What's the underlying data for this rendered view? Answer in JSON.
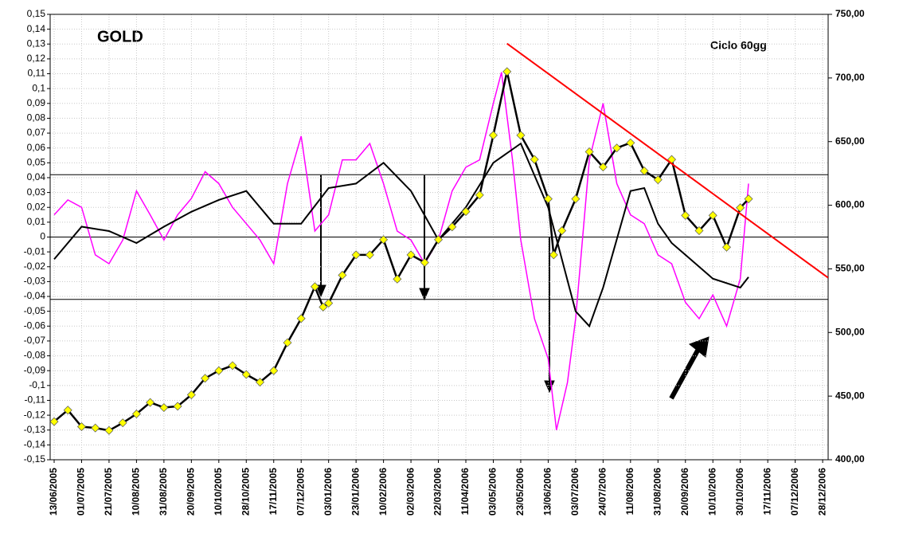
{
  "chart_data": {
    "type": "line",
    "title": "GOLD",
    "subtitle": "Ciclo 60gg",
    "categories": [
      "13/06/2005",
      "01/07/2005",
      "21/07/2005",
      "10/08/2005",
      "31/08/2005",
      "20/09/2005",
      "10/10/2005",
      "28/10/2005",
      "17/11/2005",
      "07/12/2005",
      "03/01/2006",
      "23/01/2006",
      "10/02/2006",
      "02/03/2006",
      "22/03/2006",
      "11/04/2006",
      "03/05/2006",
      "23/05/2006",
      "13/06/2006",
      "03/07/2006",
      "24/07/2006",
      "11/08/2006",
      "31/08/2006",
      "20/09/2006",
      "10/10/2006",
      "30/10/2006",
      "17/11/2006",
      "07/12/2006",
      "28/12/2006"
    ],
    "xlim": [
      -0.145,
      28.2
    ],
    "ylim": [
      -0.15,
      0.15
    ],
    "yticks": [
      {
        "value": 0.15,
        "label": "0,15"
      },
      {
        "value": 0.14,
        "label": "0,14"
      },
      {
        "value": 0.13,
        "label": "0,13"
      },
      {
        "value": 0.12,
        "label": "0,12"
      },
      {
        "value": 0.11,
        "label": "0,11"
      },
      {
        "value": 0.1,
        "label": "0,1"
      },
      {
        "value": 0.09,
        "label": "0,09"
      },
      {
        "value": 0.08,
        "label": "0,08"
      },
      {
        "value": 0.07,
        "label": "0,07"
      },
      {
        "value": 0.06,
        "label": "0,06"
      },
      {
        "value": 0.05,
        "label": "0,05"
      },
      {
        "value": 0.04,
        "label": "0,04"
      },
      {
        "value": 0.03,
        "label": "0,03"
      },
      {
        "value": 0.02,
        "label": "0,02"
      },
      {
        "value": 0.01,
        "label": "0,01"
      },
      0,
      {
        "value": -0.01,
        "label": "-0,01"
      },
      {
        "value": -0.02,
        "label": "-0,02"
      },
      {
        "value": -0.03,
        "label": "-0,03"
      },
      {
        "value": -0.04,
        "label": "-0,04"
      },
      {
        "value": -0.05,
        "label": "-0,05"
      },
      {
        "value": -0.06,
        "label": "-0,06"
      },
      {
        "value": -0.07,
        "label": "-0,07"
      },
      {
        "value": -0.08,
        "label": "-0,08"
      },
      {
        "value": -0.09,
        "label": "-0,09"
      },
      {
        "value": -0.1,
        "label": "-0,1"
      },
      {
        "value": -0.11,
        "label": "-0,11"
      },
      {
        "value": -0.12,
        "label": "-0,12"
      },
      {
        "value": -0.13,
        "label": "-0,13"
      },
      {
        "value": -0.14,
        "label": "-0,14"
      },
      {
        "value": -0.15,
        "label": "-0,15"
      }
    ],
    "y2lim": [
      400,
      750
    ],
    "y2ticks": [
      {
        "value": 400,
        "label": "400,00"
      },
      {
        "value": 450,
        "label": "450,00"
      },
      {
        "value": 500,
        "label": "500,00"
      },
      {
        "value": 550,
        "label": "550,00"
      },
      {
        "value": 600,
        "label": "600,00"
      },
      {
        "value": 650,
        "label": "650,00"
      },
      {
        "value": 700,
        "label": "700,00"
      },
      {
        "value": 750,
        "label": "750,00"
      }
    ],
    "grid": true,
    "reference_lines": [
      0.042,
      0,
      -0.042
    ],
    "series": [
      {
        "color": "#ff00ff",
        "width": 1.5,
        "x": [
          0,
          0.5,
          1,
          1.5,
          2,
          2.5,
          3,
          3.5,
          4,
          4.5,
          5,
          5.5,
          6,
          6.5,
          7,
          7.5,
          8,
          8.5,
          9,
          9.5,
          10,
          10.5,
          11,
          11.5,
          12,
          12.5,
          13,
          13.5,
          14,
          14.5,
          15,
          15.5,
          16,
          16.3,
          16.7,
          17,
          17.5,
          18,
          18.3,
          18.7,
          19,
          19.5,
          20,
          20.5,
          21,
          21.5,
          22,
          22.5,
          23,
          23.5,
          24,
          24.5,
          25,
          25.3
        ],
        "values": [
          0.015,
          0.025,
          0.02,
          -0.012,
          -0.018,
          -0.002,
          0.031,
          0.015,
          -0.002,
          0.015,
          0.026,
          0.044,
          0.036,
          0.02,
          0.009,
          -0.002,
          -0.018,
          0.036,
          0.068,
          0.004,
          0.015,
          0.052,
          0.052,
          0.063,
          0.036,
          0.004,
          -0.002,
          -0.018,
          -0.002,
          0.031,
          0.047,
          0.052,
          0.09,
          0.111,
          0.052,
          -0.002,
          -0.055,
          -0.082,
          -0.13,
          -0.098,
          -0.055,
          0.052,
          0.09,
          0.036,
          0.015,
          0.009,
          -0.012,
          -0.018,
          -0.044,
          -0.055,
          -0.039,
          -0.06,
          -0.028,
          0.036
        ]
      },
      {
        "color": "#000000",
        "width": 2,
        "x": [
          0,
          1,
          2,
          3,
          4,
          5,
          6,
          7,
          8,
          9,
          10,
          11,
          12,
          13,
          14,
          15,
          16,
          17,
          18,
          19,
          19.5,
          20,
          21,
          21.5,
          22,
          22.5,
          23,
          24,
          25,
          25.3
        ],
        "values": [
          -0.015,
          0.007,
          0.004,
          -0.004,
          0.007,
          0.017,
          0.025,
          0.031,
          0.009,
          0.009,
          0.033,
          0.036,
          0.05,
          0.031,
          -0.002,
          0.02,
          0.05,
          0.063,
          0.02,
          -0.05,
          -0.06,
          -0.034,
          0.031,
          0.033,
          0.009,
          -0.004,
          -0.012,
          -0.028,
          -0.034,
          -0.027
        ]
      },
      {
        "color": "#000000",
        "width": 2.5,
        "axis": "y2",
        "marker": "diamond",
        "marker_color": "#ffff00",
        "x": [
          0,
          0.5,
          1,
          1.5,
          2,
          2.5,
          3,
          3.5,
          4,
          4.5,
          5,
          5.5,
          6,
          6.5,
          7,
          7.5,
          8,
          8.5,
          9,
          9.5,
          9.8,
          10,
          10.5,
          11,
          11.5,
          12,
          12.5,
          13,
          13.5,
          14,
          14.5,
          15,
          15.5,
          16,
          16.5,
          17,
          17.5,
          18,
          18.2,
          18.5,
          19,
          19.5,
          20,
          20.5,
          21,
          21.5,
          22,
          22.5,
          23,
          23.5,
          24,
          24.5,
          25,
          25.3
        ],
        "values": [
          430,
          439,
          426,
          425,
          423,
          429,
          436,
          445,
          441,
          442,
          451,
          464,
          470,
          474,
          467,
          461,
          470,
          492,
          511,
          536,
          520,
          523,
          545,
          561,
          561,
          573,
          542,
          561,
          555,
          573,
          583,
          595,
          608,
          655,
          705,
          655,
          636,
          605,
          561,
          580,
          605,
          642,
          630,
          645,
          649,
          627,
          620,
          636,
          592,
          580,
          592,
          567,
          598,
          605
        ]
      },
      {
        "color": "#ff0000",
        "width": 2,
        "axis": "y2",
        "x": [
          16.5,
          28.2
        ],
        "values": [
          727,
          543
        ]
      }
    ]
  }
}
